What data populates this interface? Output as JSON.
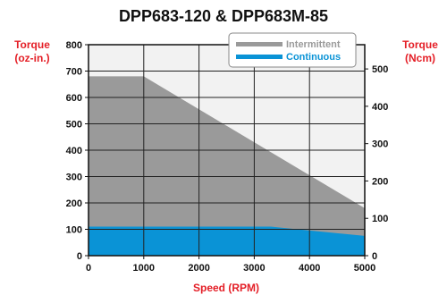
{
  "chart_data": {
    "type": "area",
    "title": "DPP683-120 & DPP683M-85",
    "xlabel": "Speed (RPM)",
    "ylabel": "Torque (oz-in.)",
    "ylabel_lines": [
      "Torque",
      "(oz-in.)"
    ],
    "y2label": "Torque (Ncm)",
    "y2label_lines": [
      "Torque",
      "(Ncm)"
    ],
    "xlim": [
      0,
      5000
    ],
    "ylim": [
      0,
      800
    ],
    "y2lim": [
      0,
      564.9
    ],
    "x_ticks": [
      0,
      1000,
      2000,
      3000,
      4000,
      5000
    ],
    "y_ticks": [
      0,
      100,
      200,
      300,
      400,
      500,
      600,
      700,
      800
    ],
    "y2_ticks": [
      0,
      100,
      200,
      300,
      400,
      500
    ],
    "grid": true,
    "legend_position": "top-right",
    "series": [
      {
        "name": "Intermittent",
        "color": "#9a9a9a",
        "x": [
          0,
          1000,
          5000
        ],
        "y": [
          680,
          680,
          180
        ]
      },
      {
        "name": "Continuous",
        "color": "#0a93d6",
        "x": [
          0,
          3300,
          5000
        ],
        "y": [
          110,
          110,
          75
        ]
      }
    ],
    "plot_background": "#f2f2f2",
    "label_color": "#e41e26"
  }
}
